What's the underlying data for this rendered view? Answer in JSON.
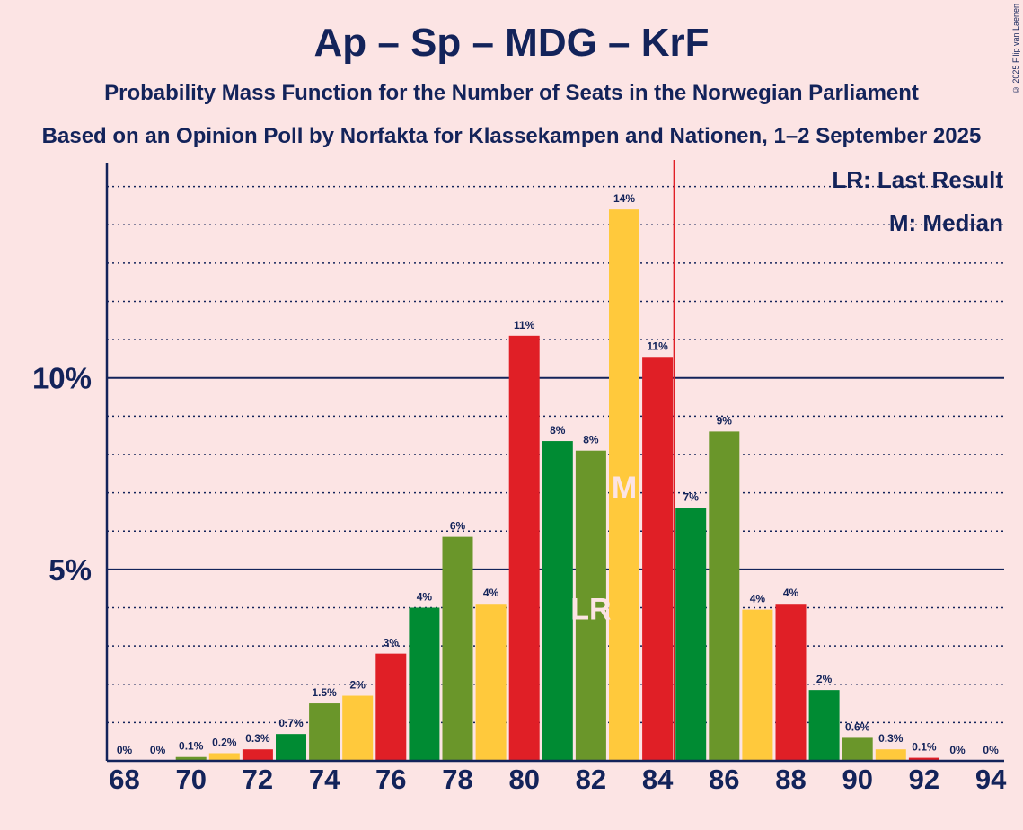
{
  "header": {
    "title": "Ap – Sp – MDG – KrF",
    "subtitle": "Probability Mass Function for the Number of Seats in the Norwegian Parliament",
    "subtitle2": "Based on an Opinion Poll by Norfakta for Klassekampen and Nationen, 1–2 September 2025",
    "copyright": "© 2025 Filip van Laenen"
  },
  "colors": {
    "background": "#fce4e4",
    "text": "#13235a",
    "red": "#e01f26",
    "green": "#008b33",
    "olive": "#6a962a",
    "yellow": "#ffc93c",
    "majority_line": "#e01f26"
  },
  "chart_data": {
    "type": "bar",
    "title": "Ap – Sp – MDG – KrF",
    "x": [
      68,
      69,
      70,
      71,
      72,
      73,
      74,
      75,
      76,
      77,
      78,
      79,
      80,
      81,
      82,
      83,
      84,
      85,
      86,
      87,
      88,
      89,
      90,
      91,
      92,
      93,
      94
    ],
    "values": [
      0,
      0,
      0.1,
      0.2,
      0.3,
      0.7,
      1.5,
      1.7,
      2.8,
      4.0,
      5.85,
      4.1,
      11.1,
      8.35,
      8.1,
      14.4,
      10.55,
      6.6,
      8.6,
      3.95,
      4.1,
      1.85,
      0.6,
      0.3,
      0.08,
      0,
      0
    ],
    "labels": [
      "0%",
      "0%",
      "0.1%",
      "0.2%",
      "0.3%",
      "0.7%",
      "1.5%",
      "2%",
      "3%",
      "4%",
      "6%",
      "4%",
      "11%",
      "8%",
      "8%",
      "14%",
      "11%",
      "7%",
      "9%",
      "4%",
      "4%",
      "2%",
      "0.6%",
      "0.3%",
      "0.1%",
      "0%",
      "0%"
    ],
    "bar_colors": [
      "red",
      "green",
      "olive",
      "yellow",
      "red",
      "green",
      "olive",
      "yellow",
      "red",
      "green",
      "olive",
      "yellow",
      "red",
      "green",
      "olive",
      "yellow",
      "red",
      "green",
      "olive",
      "yellow",
      "red",
      "green",
      "olive",
      "yellow",
      "red",
      "green",
      "olive"
    ],
    "x_tick_labels": [
      "68",
      "70",
      "72",
      "74",
      "76",
      "78",
      "80",
      "82",
      "84",
      "86",
      "88",
      "90",
      "92",
      "94"
    ],
    "y_tick_labels": [
      "5%",
      "10%"
    ],
    "y_ticks": [
      5,
      10
    ],
    "ylim": [
      0,
      15.6
    ],
    "gridlines_minor_step": 1,
    "majority_after_seat": 84,
    "last_result": {
      "seat": 82,
      "marker": "LR"
    },
    "median": {
      "seat": 83,
      "marker": "M"
    },
    "legend": {
      "placement": "top-right",
      "items": [
        "LR: Last Result",
        "M: Median"
      ]
    }
  }
}
